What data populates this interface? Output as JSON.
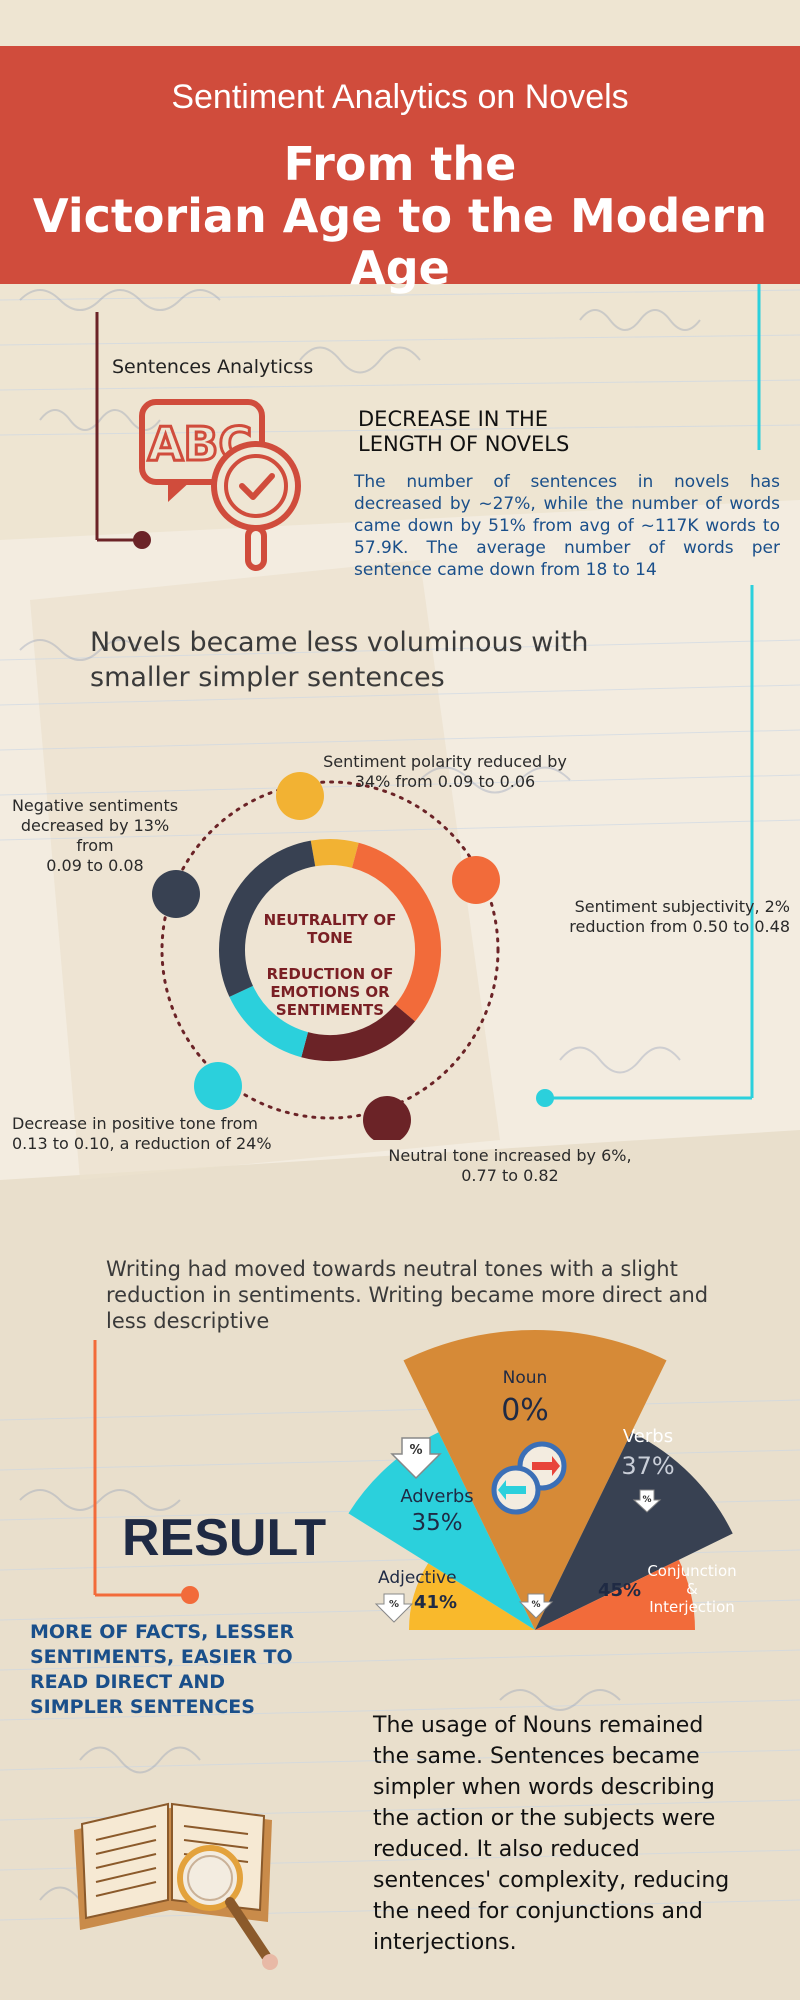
{
  "header": {
    "subtitle": "Sentiment Analytics on Novels",
    "title_line1": "From the",
    "title_line2": "Victorian Age to the Modern Age"
  },
  "sentences": {
    "label": "Sentences Analyticss",
    "icon_text": "ABC",
    "heading_line1": "DECREASE IN THE",
    "heading_line2": "LENGTH OF NOVELS",
    "body": "The number of sentences in novels has decreased by ~27%, while the number of words came down by 51% from avg of ~117K words to 57.9K. The average number of words per sentence came down from 18 to 14"
  },
  "novels_statement": {
    "line1": "Novels became less voluminous with",
    "line2": "smaller simpler sentences"
  },
  "donut": {
    "center_line1": "NEUTRALITY OF",
    "center_line2": "TONE",
    "center_line3": "REDUCTION OF",
    "center_line4": "EMOTIONS OR",
    "center_line5": "SENTIMENTS",
    "polarity_line1": "Sentiment polarity reduced by",
    "polarity_line2": "34% from 0.09 to 0.06",
    "negative_line1": "Negative sentiments",
    "negative_line2": "decreased by 13% from",
    "negative_line3": "0.09 to 0.08",
    "subjectivity_line1": "Sentiment subjectivity, 2%",
    "subjectivity_line2": "reduction from 0.50 to 0.48",
    "positive_line1": "Decrease in positive tone from",
    "positive_line2": "0.13 to 0.10, a reduction of 24%",
    "neutral_line1": "Neutral tone increased by 6%,",
    "neutral_line2": "0.77 to 0.82",
    "colors": {
      "polarity": "#f2b233",
      "negative": "#384152",
      "subjectivity": "#f26b3a",
      "positive": "#2bd0dc",
      "neutral": "#6b2327"
    }
  },
  "writing_statement": {
    "line1": "Writing had moved towards neutral tones with a slight",
    "line2": "reduction in sentiments. Writing became more direct and",
    "line3": "less descriptive"
  },
  "fan_chart": {
    "noun_label": "Noun",
    "noun_value": "0%",
    "verbs_label": "Verbs",
    "verbs_value": "37%",
    "adverbs_label": "Adverbs",
    "adverbs_value": "35%",
    "adjective_label": "Adjective",
    "adjective_value": "41%",
    "conj_line1": "Conjunction",
    "conj_line2": "&",
    "conj_line3": "Interjection",
    "conj_value": "45%",
    "colors": {
      "noun": "#d68a37",
      "verbs": "#384152",
      "adverbs": "#2bd0dc",
      "adjective": "#f9b92c",
      "conj": "#f26b3a"
    }
  },
  "result": {
    "title": "RESULT",
    "tag_line1": "MORE OF FACTS, LESSER",
    "tag_line2": "SENTIMENTS, EASIER TO",
    "tag_line3": "READ DIRECT AND",
    "tag_line4": "SIMPLER SENTENCES",
    "body_line1": "The usage of Nouns remained",
    "body_line2": "the same. Sentences became",
    "body_line3": "simpler when words describing",
    "body_line4": "the action or the subjects were",
    "body_line5": "reduced. It also reduced",
    "body_line6": "sentences' complexity, reducing",
    "body_line7": "the need for conjunctions and",
    "body_line8": "interjections."
  },
  "icons": {
    "percent_symbol": "%"
  }
}
